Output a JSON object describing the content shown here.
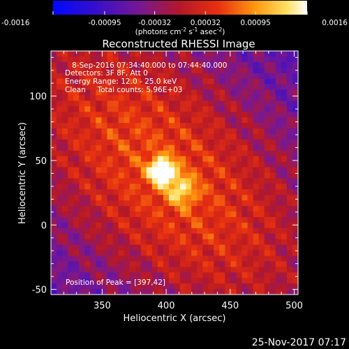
{
  "colorbar": {
    "ticks": [
      "-0.0016",
      "-0.00095",
      "-0.00032",
      "0.00032",
      "0.00095",
      "0.0016"
    ],
    "units_main": "(photons cm",
    "units_exp1": "-2",
    "units_mid": " s",
    "units_exp2": "-1",
    "units_end": " asec",
    "units_exp3": "-2",
    "units_close": ")"
  },
  "info": {
    "line1": "8-Sep-2016 07:34:40.000 to 07:44:40.000",
    "line2": "Detectors: 3F 8F, Att 0",
    "line3": "Energy Range: 12.0 - 25.0 keV",
    "line4": "Clean     Total counts: 5.96E+03",
    "peak": "Position of Peak = [397,42]"
  },
  "footer": {
    "timestamp": "25-Nov-2017 07:17"
  },
  "colors": {
    "background": "#000000",
    "text": "#ffffff"
  },
  "chart_data": {
    "type": "heatmap",
    "title": "Reconstructed RHESSI Image",
    "xlabel": "Heliocentric X (arcsec)",
    "ylabel": "Heliocentric Y (arcsec)",
    "xlim": [
      310,
      503
    ],
    "ylim": [
      -54,
      135
    ],
    "xticks": [
      350,
      400,
      450,
      500
    ],
    "yticks": [
      -50,
      0,
      50,
      100
    ],
    "zlim": [
      -0.0016,
      0.0016
    ],
    "peak": [
      397,
      42
    ],
    "secondary_source": [
      412,
      27
    ],
    "colormap": "blue-purple-red-yellow-white"
  }
}
